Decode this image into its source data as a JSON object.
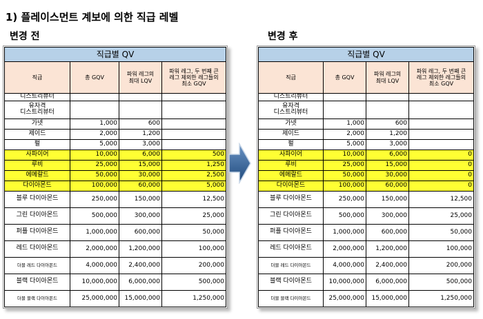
{
  "title": "1) 플레이스먼트 계보에 의한 직급 레벨",
  "before_label": "변경 전",
  "after_label": "변경 후",
  "colors": {
    "caption": "#b7d1e8",
    "header": "#fbe4d5",
    "highlight": "#ffff33",
    "arrow": "#2e5b8e"
  },
  "icons": {
    "arrow": "right-arrow-icon"
  },
  "table_caption": "직급별 QV",
  "headers": [
    "직급",
    "총 GQV",
    "파워 레그의\n최대 LQV",
    "파워 레그, 두 번째 큰\n레그 제외한 레그들의\n최소 GQV"
  ],
  "before": [
    {
      "rank": "디스트리뷰터",
      "gqv": "",
      "lqv": "",
      "min": "",
      "hl": false,
      "small": false,
      "h": 10
    },
    {
      "rank": "유자격\n디스트리뷰터",
      "gqv": "",
      "lqv": "",
      "min": "",
      "hl": false,
      "small": false,
      "h": 26
    },
    {
      "rank": "가넷",
      "gqv": "1,000",
      "lqv": "600",
      "min": "",
      "hl": false,
      "small": false,
      "h": 15
    },
    {
      "rank": "제이드",
      "gqv": "2,000",
      "lqv": "1,200",
      "min": "",
      "hl": false,
      "small": false,
      "h": 15
    },
    {
      "rank": "펄",
      "gqv": "5,000",
      "lqv": "3,000",
      "min": "",
      "hl": false,
      "small": false,
      "h": 15
    },
    {
      "rank": "사파이어",
      "gqv": "10,000",
      "lqv": "6,000",
      "min": "500",
      "hl": true,
      "small": false,
      "h": 15
    },
    {
      "rank": "루비",
      "gqv": "25,000",
      "lqv": "15,000",
      "min": "1,250",
      "hl": true,
      "small": false,
      "h": 15
    },
    {
      "rank": "에메랄드",
      "gqv": "50,000",
      "lqv": "30,000",
      "min": "2,500",
      "hl": true,
      "small": false,
      "h": 15
    },
    {
      "rank": "다이아몬드",
      "gqv": "100,000",
      "lqv": "60,000",
      "min": "5,000",
      "hl": true,
      "small": false,
      "h": 15
    },
    {
      "rank": "블루 다이아몬드",
      "gqv": "250,000",
      "lqv": "150,000",
      "min": "12,500",
      "hl": false,
      "small": false,
      "h": 24
    },
    {
      "rank": "그린 다이아몬드",
      "gqv": "500,000",
      "lqv": "300,000",
      "min": "25,000",
      "hl": false,
      "small": false,
      "h": 24
    },
    {
      "rank": "퍼플 다이아몬드",
      "gqv": "1,000,000",
      "lqv": "600,000",
      "min": "50,000",
      "hl": false,
      "small": false,
      "h": 24
    },
    {
      "rank": "레드 다이아몬드",
      "gqv": "2,000,000",
      "lqv": "1,200,000",
      "min": "100,000",
      "hl": false,
      "small": false,
      "h": 24
    },
    {
      "rank": "더블 레드 다이아몬드",
      "gqv": "4,000,000",
      "lqv": "2,400,000",
      "min": "200,000",
      "hl": false,
      "small": true,
      "h": 24
    },
    {
      "rank": "블랙 다이아몬드",
      "gqv": "10,000,000",
      "lqv": "6,000,000",
      "min": "500,000",
      "hl": false,
      "small": false,
      "h": 24
    },
    {
      "rank": "더블 블랙 다이아몬드",
      "gqv": "25,000,000",
      "lqv": "15,000,000",
      "min": "1,250,000",
      "hl": false,
      "small": true,
      "h": 24
    }
  ],
  "after": [
    {
      "rank": "디스트리뷰터",
      "gqv": "",
      "lqv": "",
      "min": "",
      "hl": false,
      "small": false,
      "h": 10
    },
    {
      "rank": "유자격\n디스트리뷰터",
      "gqv": "",
      "lqv": "",
      "min": "",
      "hl": false,
      "small": false,
      "h": 26
    },
    {
      "rank": "가넷",
      "gqv": "1,000",
      "lqv": "600",
      "min": "",
      "hl": false,
      "small": false,
      "h": 15
    },
    {
      "rank": "제이드",
      "gqv": "2,000",
      "lqv": "1,200",
      "min": "",
      "hl": false,
      "small": false,
      "h": 15
    },
    {
      "rank": "펄",
      "gqv": "5,000",
      "lqv": "3,000",
      "min": "",
      "hl": false,
      "small": false,
      "h": 15
    },
    {
      "rank": "사파이어",
      "gqv": "10,000",
      "lqv": "6,000",
      "min": "0",
      "hl": true,
      "small": false,
      "h": 15
    },
    {
      "rank": "루비",
      "gqv": "25,000",
      "lqv": "15,000",
      "min": "0",
      "hl": true,
      "small": false,
      "h": 15
    },
    {
      "rank": "에메랄드",
      "gqv": "50,000",
      "lqv": "30,000",
      "min": "0",
      "hl": true,
      "small": false,
      "h": 15
    },
    {
      "rank": "다이아몬드",
      "gqv": "100,000",
      "lqv": "60,000",
      "min": "0",
      "hl": true,
      "small": false,
      "h": 15
    },
    {
      "rank": "블루 다이아몬드",
      "gqv": "250,000",
      "lqv": "150,000",
      "min": "12,500",
      "hl": false,
      "small": false,
      "h": 24
    },
    {
      "rank": "그린 다이아몬드",
      "gqv": "500,000",
      "lqv": "300,000",
      "min": "25,000",
      "hl": false,
      "small": false,
      "h": 24
    },
    {
      "rank": "퍼플 다이아몬드",
      "gqv": "1,000,000",
      "lqv": "600,000",
      "min": "50,000",
      "hl": false,
      "small": false,
      "h": 24
    },
    {
      "rank": "레드 다이아몬드",
      "gqv": "2,000,000",
      "lqv": "1,200,000",
      "min": "100,000",
      "hl": false,
      "small": false,
      "h": 24
    },
    {
      "rank": "더블 레드 다이아몬드",
      "gqv": "4,000,000",
      "lqv": "2,400,000",
      "min": "200,000",
      "hl": false,
      "small": true,
      "h": 24
    },
    {
      "rank": "블랙 다이아몬드",
      "gqv": "10,000,000",
      "lqv": "6,000,000",
      "min": "500,000",
      "hl": false,
      "small": false,
      "h": 24
    },
    {
      "rank": "더블 블랙 다이아몬드",
      "gqv": "25,000,000",
      "lqv": "15,000,000",
      "min": "1,250,000",
      "hl": false,
      "small": true,
      "h": 24
    }
  ]
}
